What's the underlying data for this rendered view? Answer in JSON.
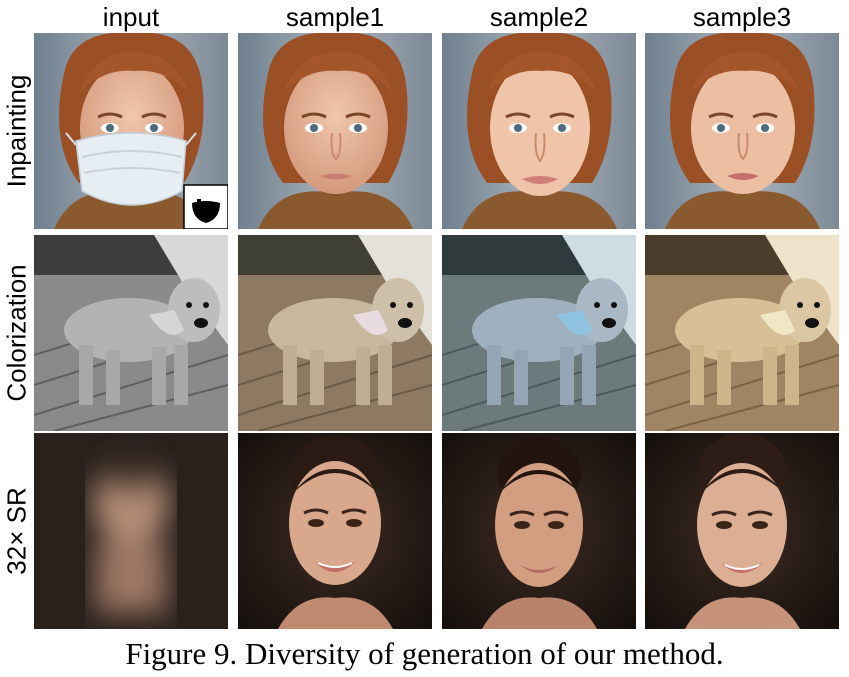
{
  "columns": [
    "input",
    "sample1",
    "sample2",
    "sample3"
  ],
  "rows": [
    {
      "label": "Inpainting",
      "kind": "face-mask"
    },
    {
      "label": "Colorization",
      "kind": "dog"
    },
    {
      "label": "32× SR",
      "kind": "face-sr"
    }
  ],
  "caption": "Figure 9. Diversity of generation of our method."
}
